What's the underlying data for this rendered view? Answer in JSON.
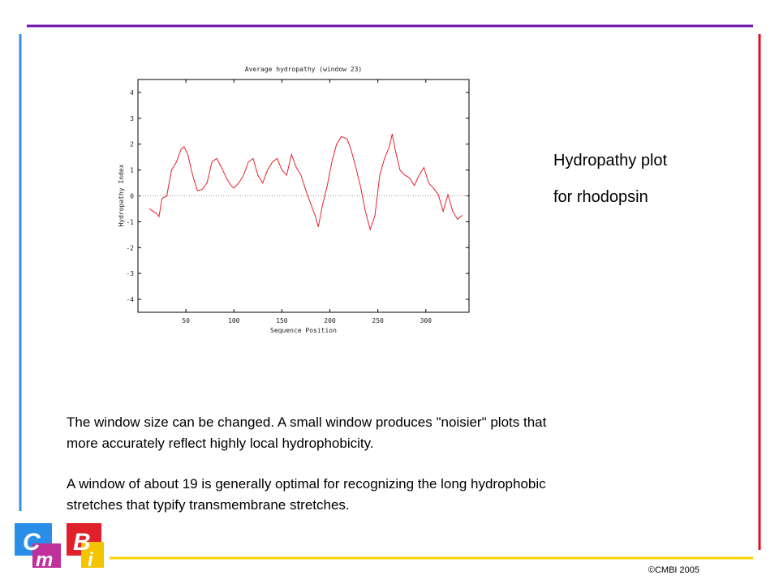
{
  "chart_data": {
    "type": "line",
    "title": "Average hydropathy (window 23)",
    "xlabel": "Sequence Position",
    "ylabel": "Hydropathy Index",
    "x": [
      12,
      20,
      22,
      25,
      30,
      35,
      40,
      45,
      48,
      52,
      57,
      62,
      67,
      72,
      77,
      82,
      87,
      92,
      97,
      100,
      105,
      110,
      115,
      120,
      125,
      130,
      135,
      140,
      145,
      150,
      155,
      160,
      165,
      170,
      175,
      180,
      185,
      188,
      192,
      197,
      202,
      207,
      212,
      218,
      222,
      227,
      232,
      237,
      242,
      247,
      252,
      257,
      262,
      265,
      268,
      273,
      278,
      283,
      288,
      293,
      298,
      303,
      308,
      313,
      318,
      323,
      328,
      333,
      338
    ],
    "series": [
      {
        "name": "hydropathy",
        "color": "#e8202a",
        "values": [
          -0.5,
          -0.7,
          -0.8,
          -0.1,
          0,
          1.0,
          1.3,
          1.8,
          1.9,
          1.6,
          0.8,
          0.2,
          0.25,
          0.5,
          1.3,
          1.45,
          1.1,
          0.7,
          0.4,
          0.3,
          0.5,
          0.8,
          1.3,
          1.45,
          0.8,
          0.5,
          1.0,
          1.3,
          1.45,
          1.0,
          0.8,
          1.6,
          1.1,
          0.8,
          0.2,
          -0.3,
          -0.8,
          -1.2,
          -0.4,
          0.35,
          1.3,
          2.0,
          2.3,
          2.2,
          1.8,
          1.1,
          0.35,
          -0.6,
          -1.3,
          -0.75,
          0.8,
          1.45,
          1.9,
          2.4,
          1.8,
          1.0,
          0.8,
          0.7,
          0.4,
          0.8,
          1.1,
          0.5,
          0.3,
          0.05,
          -0.6,
          0.05,
          -0.6,
          -0.9,
          -0.75
        ]
      }
    ],
    "xlim": [
      0,
      345
    ],
    "xticks": [
      50,
      100,
      150,
      200,
      250,
      300
    ],
    "ylim": [
      -4.5,
      4.5
    ],
    "yticks": [
      -4,
      -3,
      -2,
      -1,
      0,
      1,
      2,
      3,
      4
    ]
  },
  "caption": [
    "Hydropathy plot",
    "for rhodopsin"
  ],
  "paragraphs": [
    [
      "The window size can be changed. A small window produces \"noisier\" plots that",
      "more accurately reflect highly local hydrophobicity."
    ],
    [
      "A window of about 19 is generally optimal for recognizing the long hydrophobic",
      "stretches that typify transmembrane stretches."
    ]
  ],
  "logo": [
    "C",
    "m",
    "B",
    "i"
  ],
  "footer": "©CMBI 2005"
}
